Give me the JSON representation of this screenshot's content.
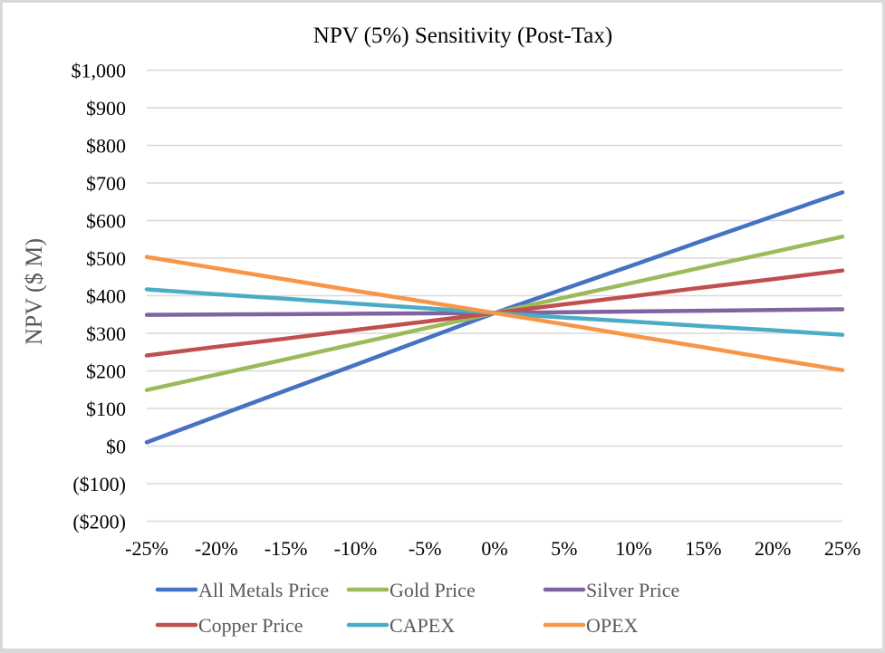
{
  "chart_data": {
    "type": "line",
    "title": "NPV (5%) Sensitivity (Post-Tax)",
    "xlabel": "",
    "ylabel": "NPV ($ M)",
    "categories": [
      "-25%",
      "-20%",
      "-15%",
      "-10%",
      "-5%",
      "0%",
      "5%",
      "10%",
      "15%",
      "20%",
      "25%"
    ],
    "y_ticks": [
      1000,
      900,
      800,
      700,
      600,
      500,
      400,
      300,
      200,
      100,
      0,
      -100,
      -200
    ],
    "y_tick_labels": [
      "$1,000",
      "$900",
      "$800",
      "$700",
      "$600",
      "$500",
      "$400",
      "$300",
      "$200",
      "$100",
      "$0",
      "($100)",
      "($200)"
    ],
    "ylim": [
      -200,
      1000
    ],
    "grid": true,
    "legend_position": "bottom",
    "series": [
      {
        "name": "All Metals Price",
        "color": "#4472c4",
        "values": [
          10,
          79,
          148,
          216,
          285,
          354,
          418,
          482,
          547,
          611,
          675
        ]
      },
      {
        "name": "Gold Price",
        "color": "#9bbb59",
        "values": [
          149,
          190,
          231,
          272,
          313,
          354,
          395,
          435,
          476,
          516,
          557
        ]
      },
      {
        "name": "Silver Price",
        "color": "#8064a2",
        "values": [
          349,
          350,
          351,
          352,
          353,
          354,
          356,
          358,
          360,
          362,
          364
        ]
      },
      {
        "name": "Copper Price",
        "color": "#c0504d",
        "values": [
          241,
          264,
          286,
          309,
          331,
          354,
          377,
          399,
          422,
          444,
          467
        ]
      },
      {
        "name": "CAPEX",
        "color": "#4bacc6",
        "values": [
          417,
          404,
          392,
          379,
          367,
          354,
          342,
          331,
          319,
          308,
          296
        ]
      },
      {
        "name": "OPEX",
        "color": "#f79646",
        "values": [
          503,
          473,
          443,
          413,
          384,
          354,
          324,
          293,
          263,
          232,
          202
        ]
      }
    ]
  }
}
